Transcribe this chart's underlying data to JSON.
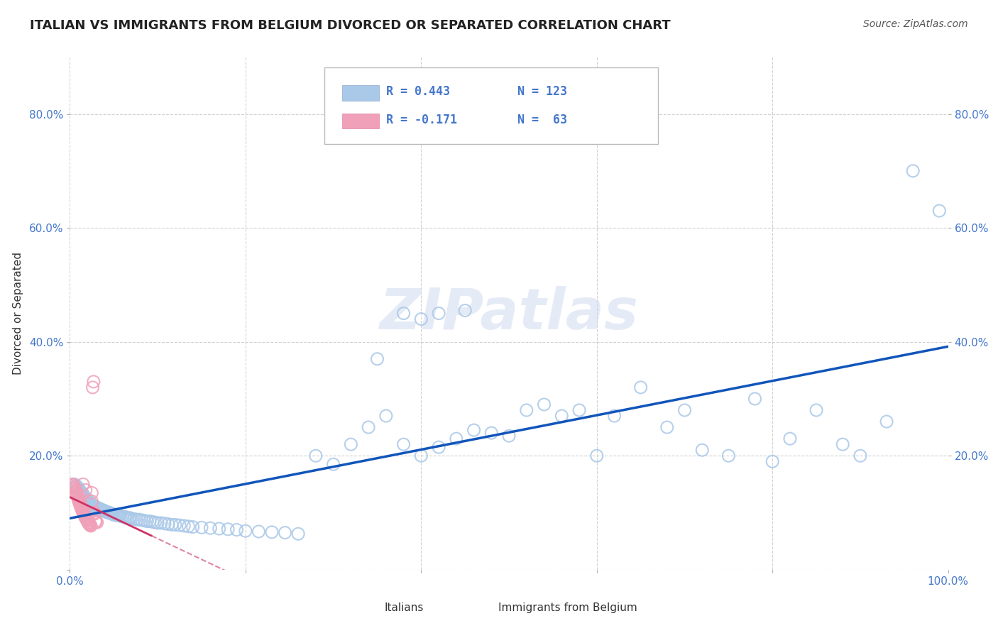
{
  "title": "ITALIAN VS IMMIGRANTS FROM BELGIUM DIVORCED OR SEPARATED CORRELATION CHART",
  "source": "Source: ZipAtlas.com",
  "ylabel": "Divorced or Separated",
  "xlim": [
    0.0,
    1.0
  ],
  "ylim": [
    0.0,
    0.9
  ],
  "ytick_positions": [
    0.0,
    0.2,
    0.4,
    0.6,
    0.8
  ],
  "ytick_labels": [
    "",
    "20.0%",
    "40.0%",
    "60.0%",
    "80.0%"
  ],
  "xtick_positions": [
    0.0,
    0.2,
    0.4,
    0.6,
    0.8,
    1.0
  ],
  "xtick_labels": [
    "0.0%",
    "",
    "",
    "",
    "",
    "100.0%"
  ],
  "grid_color": "#cccccc",
  "background_color": "#ffffff",
  "legend_R1": "R = 0.443",
  "legend_N1": "N = 123",
  "legend_R2": "R = -0.171",
  "legend_N2": "N =  63",
  "italian_color": "#aac8e8",
  "belgian_color": "#f0a0b8",
  "italian_line_color": "#1155bb",
  "belgian_line_color": "#cc3366",
  "title_color": "#222222",
  "title_fontsize": 13,
  "label_color": "#4477cc",
  "italians_x": [
    0.005,
    0.007,
    0.008,
    0.01,
    0.01,
    0.012,
    0.013,
    0.015,
    0.015,
    0.016,
    0.017,
    0.018,
    0.019,
    0.02,
    0.02,
    0.021,
    0.022,
    0.022,
    0.023,
    0.024,
    0.025,
    0.025,
    0.026,
    0.027,
    0.028,
    0.029,
    0.03,
    0.031,
    0.032,
    0.033,
    0.034,
    0.035,
    0.036,
    0.037,
    0.038,
    0.039,
    0.04,
    0.041,
    0.042,
    0.043,
    0.044,
    0.045,
    0.046,
    0.047,
    0.048,
    0.049,
    0.05,
    0.052,
    0.054,
    0.056,
    0.058,
    0.06,
    0.062,
    0.064,
    0.066,
    0.068,
    0.07,
    0.073,
    0.076,
    0.079,
    0.082,
    0.085,
    0.088,
    0.091,
    0.094,
    0.097,
    0.1,
    0.104,
    0.108,
    0.112,
    0.116,
    0.12,
    0.125,
    0.13,
    0.135,
    0.14,
    0.15,
    0.16,
    0.17,
    0.18,
    0.19,
    0.2,
    0.215,
    0.23,
    0.245,
    0.26,
    0.28,
    0.3,
    0.32,
    0.34,
    0.36,
    0.38,
    0.4,
    0.42,
    0.44,
    0.46,
    0.48,
    0.5,
    0.52,
    0.54,
    0.56,
    0.58,
    0.6,
    0.62,
    0.65,
    0.68,
    0.7,
    0.72,
    0.75,
    0.78,
    0.8,
    0.82,
    0.85,
    0.88,
    0.9,
    0.93,
    0.96,
    0.99,
    0.35,
    0.38,
    0.4,
    0.42,
    0.45
  ],
  "italians_y": [
    0.15,
    0.148,
    0.145,
    0.143,
    0.14,
    0.138,
    0.135,
    0.133,
    0.131,
    0.129,
    0.127,
    0.126,
    0.124,
    0.123,
    0.121,
    0.12,
    0.119,
    0.118,
    0.117,
    0.116,
    0.115,
    0.114,
    0.113,
    0.112,
    0.111,
    0.11,
    0.11,
    0.109,
    0.108,
    0.107,
    0.107,
    0.106,
    0.105,
    0.105,
    0.104,
    0.103,
    0.103,
    0.102,
    0.101,
    0.101,
    0.1,
    0.1,
    0.099,
    0.099,
    0.098,
    0.097,
    0.097,
    0.096,
    0.095,
    0.095,
    0.094,
    0.093,
    0.093,
    0.092,
    0.091,
    0.091,
    0.09,
    0.089,
    0.088,
    0.088,
    0.087,
    0.086,
    0.085,
    0.085,
    0.084,
    0.083,
    0.082,
    0.082,
    0.081,
    0.08,
    0.079,
    0.079,
    0.078,
    0.077,
    0.076,
    0.075,
    0.074,
    0.073,
    0.072,
    0.071,
    0.07,
    0.068,
    0.067,
    0.066,
    0.065,
    0.063,
    0.2,
    0.185,
    0.22,
    0.25,
    0.27,
    0.22,
    0.2,
    0.215,
    0.23,
    0.245,
    0.24,
    0.235,
    0.28,
    0.29,
    0.27,
    0.28,
    0.2,
    0.27,
    0.32,
    0.25,
    0.28,
    0.21,
    0.2,
    0.3,
    0.19,
    0.23,
    0.28,
    0.22,
    0.2,
    0.26,
    0.7,
    0.63,
    0.37,
    0.45,
    0.44,
    0.45,
    0.455
  ],
  "belgians_x": [
    0.003,
    0.004,
    0.005,
    0.005,
    0.006,
    0.007,
    0.007,
    0.007,
    0.008,
    0.008,
    0.008,
    0.009,
    0.009,
    0.01,
    0.01,
    0.01,
    0.011,
    0.011,
    0.011,
    0.012,
    0.012,
    0.012,
    0.013,
    0.013,
    0.013,
    0.014,
    0.014,
    0.014,
    0.015,
    0.015,
    0.015,
    0.016,
    0.016,
    0.016,
    0.017,
    0.017,
    0.017,
    0.018,
    0.018,
    0.019,
    0.019,
    0.019,
    0.02,
    0.02,
    0.02,
    0.021,
    0.021,
    0.022,
    0.022,
    0.023,
    0.023,
    0.024,
    0.025,
    0.025,
    0.026,
    0.027,
    0.028,
    0.028,
    0.029,
    0.03,
    0.031,
    0.015,
    0.018
  ],
  "belgians_y": [
    0.15,
    0.148,
    0.145,
    0.143,
    0.141,
    0.139,
    0.137,
    0.135,
    0.133,
    0.131,
    0.13,
    0.128,
    0.126,
    0.125,
    0.123,
    0.121,
    0.12,
    0.118,
    0.117,
    0.115,
    0.114,
    0.112,
    0.111,
    0.11,
    0.108,
    0.107,
    0.106,
    0.104,
    0.103,
    0.102,
    0.101,
    0.1,
    0.098,
    0.097,
    0.096,
    0.095,
    0.093,
    0.092,
    0.091,
    0.09,
    0.089,
    0.088,
    0.087,
    0.086,
    0.085,
    0.083,
    0.082,
    0.081,
    0.08,
    0.079,
    0.078,
    0.077,
    0.12,
    0.135,
    0.32,
    0.33,
    0.1,
    0.098,
    0.085,
    0.084,
    0.083,
    0.15,
    0.14
  ]
}
